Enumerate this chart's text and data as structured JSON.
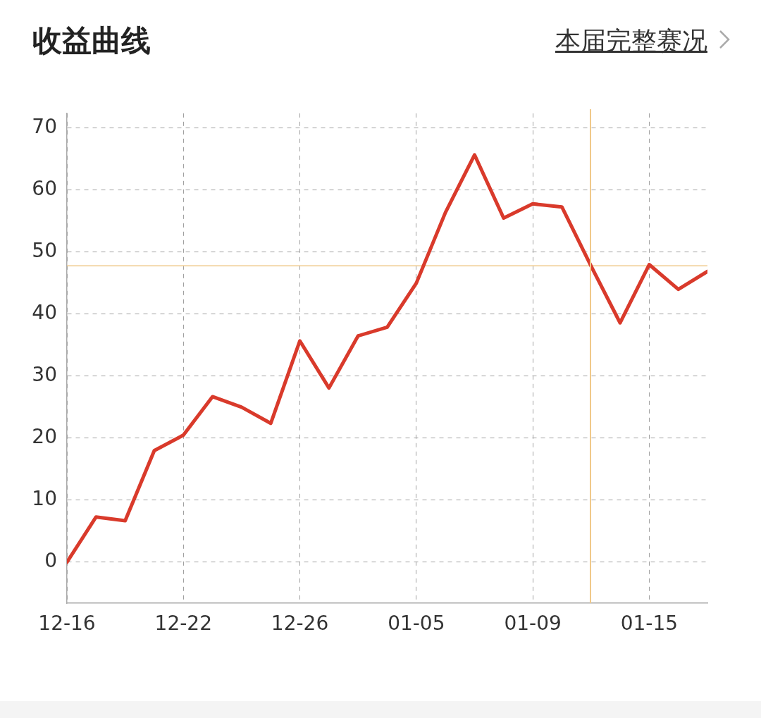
{
  "chart_data": {
    "type": "line",
    "title": "收益曲线",
    "annotations": [
      "本届完整赛况"
    ],
    "categories": [
      "12-16",
      null,
      null,
      null,
      "12-22",
      null,
      null,
      null,
      "12-26",
      null,
      null,
      null,
      "01-05",
      null,
      null,
      null,
      "01-09",
      null,
      null,
      null,
      "01-15",
      null,
      null
    ],
    "series": [
      {
        "color": "#d93a2b",
        "values": [
          0,
          7.3,
          6.7,
          18.0,
          20.5,
          26.7,
          25.0,
          22.4,
          35.7,
          28.1,
          36.5,
          37.9,
          45.0,
          56.4,
          65.7,
          55.5,
          57.8,
          57.3,
          47.8,
          38.6,
          48.0,
          44.0,
          46.9
        ]
      }
    ],
    "ylim": [
      -6.6,
      72.4
    ],
    "yticks": [
      0,
      10,
      20,
      30,
      40,
      50,
      60,
      70
    ],
    "ref_lines": [
      {
        "axis": "y",
        "value": 47.8,
        "color": "#f0c98a"
      }
    ],
    "grid": true,
    "legend": false,
    "marker": "none",
    "line_style": "solid"
  }
}
